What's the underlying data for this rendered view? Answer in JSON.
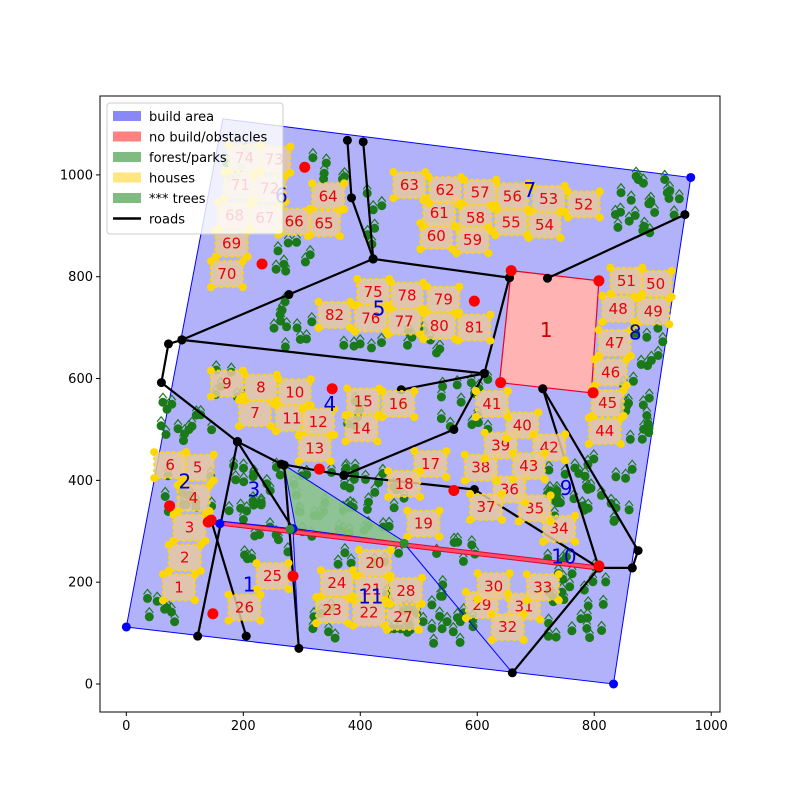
{
  "colors": {
    "build_area": "#8888f7",
    "build_edge": "#0000ff",
    "obstacle": "#ffb3b3",
    "obstacle_edge": "#e8002a",
    "forest": "#8bc48b",
    "house": "#ffd700",
    "house_frame": "#e8c8a0",
    "tree": "#1a7a1a",
    "road": "#000000",
    "blue_node": "#0000ff",
    "red_node": "#ff0000",
    "green_node": "#2e8b2e",
    "label_red": "#e8000b",
    "label_blue": "#0000cc"
  },
  "chart_data": {
    "type": "scatter",
    "title": "",
    "xlabel": "",
    "ylabel": "",
    "xlim": [
      -45,
      1015
    ],
    "ylim": [
      -55,
      1155
    ],
    "xticks": [
      "0",
      "200",
      "400",
      "600",
      "800",
      "1000"
    ],
    "xtick_values": [
      0,
      200,
      400,
      600,
      800,
      1000
    ],
    "yticks": [
      "0",
      "200",
      "400",
      "600",
      "800",
      "1000"
    ],
    "ytick_values": [
      0,
      200,
      400,
      600,
      800,
      1000
    ],
    "grid": false,
    "legend": {
      "placement": "top-left",
      "entries": [
        {
          "label": "build area",
          "kind": "patch",
          "color": "#8888f7"
        },
        {
          "label": "no build/obstacles",
          "kind": "patch",
          "color": "#ff8080"
        },
        {
          "label": "forest/parks",
          "kind": "patch",
          "color": "#80bb80"
        },
        {
          "label": "houses",
          "kind": "patch",
          "color": "#ffe680"
        },
        {
          "label": "*** trees",
          "kind": "patch",
          "color": "#80bb80"
        },
        {
          "label": "roads",
          "kind": "line",
          "color": "#000000"
        }
      ]
    },
    "build_area": [
      [
        0,
        112
      ],
      [
        165,
        1110
      ],
      [
        965,
        995
      ],
      [
        833,
        0
      ]
    ],
    "obstacle": {
      "label": "1",
      "polygon": [
        [
          658,
          812
        ],
        [
          808,
          792
        ],
        [
          795,
          572
        ],
        [
          638,
          592
        ]
      ],
      "label_pos": [
        718,
        695
      ]
    },
    "road_strip": [
      [
        145,
        322
      ],
      [
        808,
        232
      ],
      [
        808,
        224
      ],
      [
        145,
        314
      ]
    ],
    "forest_polygon": [
      [
        270,
        430
      ],
      [
        480,
        276
      ],
      [
        290,
        305
      ]
    ],
    "roads": [
      [
        [
          378,
          1068
        ],
        [
          385,
          955
        ],
        [
          422,
          835
        ],
        [
          405,
          1065
        ]
      ],
      [
        [
          422,
          835
        ],
        [
          278,
          765
        ],
        [
          95,
          676
        ]
      ],
      [
        [
          95,
          676
        ],
        [
          72,
          668
        ],
        [
          60,
          592
        ],
        [
          190,
          476
        ]
      ],
      [
        [
          422,
          835
        ],
        [
          655,
          798
        ]
      ],
      [
        [
          655,
          798
        ],
        [
          612,
          610
        ]
      ],
      [
        [
          720,
          797
        ],
        [
          955,
          922
        ]
      ],
      [
        [
          95,
          676
        ],
        [
          612,
          610
        ]
      ],
      [
        [
          612,
          610
        ],
        [
          470,
          578
        ]
      ],
      [
        [
          712,
          580
        ],
        [
          875,
          262
        ],
        [
          865,
          228
        ]
      ],
      [
        [
          712,
          580
        ],
        [
          808,
          228
        ]
      ],
      [
        [
          190,
          476
        ],
        [
          265,
          432
        ],
        [
          372,
          410
        ]
      ],
      [
        [
          190,
          476
        ],
        [
          122,
          94
        ]
      ],
      [
        [
          372,
          410
        ],
        [
          560,
          500
        ],
        [
          612,
          610
        ]
      ],
      [
        [
          372,
          410
        ],
        [
          595,
          382
        ],
        [
          808,
          228
        ]
      ],
      [
        [
          145,
          322
        ],
        [
          205,
          94
        ]
      ],
      [
        [
          190,
          476
        ],
        [
          285,
          305
        ]
      ],
      [
        [
          808,
          228
        ],
        [
          660,
          22
        ]
      ],
      [
        [
          865,
          228
        ],
        [
          808,
          228
        ]
      ],
      [
        [
          270,
          430
        ],
        [
          295,
          70
        ]
      ]
    ],
    "blue_nodes": [
      [
        0,
        112
      ],
      [
        965,
        995
      ],
      [
        833,
        0
      ],
      [
        160,
        315
      ],
      [
        475,
        276
      ],
      [
        285,
        305
      ]
    ],
    "red_nodes": [
      [
        305,
        1015
      ],
      [
        232,
        825
      ],
      [
        595,
        752
      ],
      [
        658,
        812
      ],
      [
        808,
        792
      ],
      [
        640,
        592
      ],
      [
        798,
        572
      ],
      [
        352,
        580
      ],
      [
        330,
        422
      ],
      [
        560,
        380
      ],
      [
        74,
        350
      ],
      [
        140,
        318
      ],
      [
        145,
        322
      ],
      [
        148,
        138
      ],
      [
        285,
        212
      ],
      [
        808,
        232
      ]
    ],
    "green_nodes": [
      [
        280,
        304
      ],
      [
        475,
        276
      ]
    ],
    "houses": [
      {
        "id": "1",
        "x": 90,
        "y": 190
      },
      {
        "id": "2",
        "x": 100,
        "y": 248
      },
      {
        "id": "3",
        "x": 108,
        "y": 307
      },
      {
        "id": "4",
        "x": 115,
        "y": 365
      },
      {
        "id": "5",
        "x": 122,
        "y": 425
      },
      {
        "id": "6",
        "x": 75,
        "y": 430
      },
      {
        "id": "7",
        "x": 220,
        "y": 532
      },
      {
        "id": "8",
        "x": 230,
        "y": 582
      },
      {
        "id": "9",
        "x": 172,
        "y": 590
      },
      {
        "id": "10",
        "x": 288,
        "y": 573
      },
      {
        "id": "11",
        "x": 283,
        "y": 522
      },
      {
        "id": "12",
        "x": 328,
        "y": 515
      },
      {
        "id": "13",
        "x": 322,
        "y": 463
      },
      {
        "id": "14",
        "x": 402,
        "y": 502
      },
      {
        "id": "15",
        "x": 405,
        "y": 555
      },
      {
        "id": "16",
        "x": 465,
        "y": 550
      },
      {
        "id": "17",
        "x": 520,
        "y": 432
      },
      {
        "id": "18",
        "x": 475,
        "y": 393
      },
      {
        "id": "19",
        "x": 508,
        "y": 315
      },
      {
        "id": "20",
        "x": 425,
        "y": 238
      },
      {
        "id": "21",
        "x": 420,
        "y": 186
      },
      {
        "id": "22",
        "x": 415,
        "y": 140
      },
      {
        "id": "23",
        "x": 352,
        "y": 145
      },
      {
        "id": "24",
        "x": 360,
        "y": 198
      },
      {
        "id": "25",
        "x": 250,
        "y": 212
      },
      {
        "id": "26",
        "x": 202,
        "y": 150
      },
      {
        "id": "27",
        "x": 473,
        "y": 132
      },
      {
        "id": "28",
        "x": 478,
        "y": 183
      },
      {
        "id": "29",
        "x": 608,
        "y": 155
      },
      {
        "id": "30",
        "x": 628,
        "y": 192
      },
      {
        "id": "31",
        "x": 680,
        "y": 152
      },
      {
        "id": "32",
        "x": 652,
        "y": 112
      },
      {
        "id": "33",
        "x": 712,
        "y": 190
      },
      {
        "id": "34",
        "x": 740,
        "y": 305
      },
      {
        "id": "35",
        "x": 698,
        "y": 345
      },
      {
        "id": "36",
        "x": 655,
        "y": 382
      },
      {
        "id": "37",
        "x": 615,
        "y": 348
      },
      {
        "id": "38",
        "x": 606,
        "y": 425
      },
      {
        "id": "39",
        "x": 640,
        "y": 468
      },
      {
        "id": "40",
        "x": 677,
        "y": 508
      },
      {
        "id": "41",
        "x": 625,
        "y": 550
      },
      {
        "id": "42",
        "x": 723,
        "y": 465
      },
      {
        "id": "43",
        "x": 688,
        "y": 428
      },
      {
        "id": "44",
        "x": 818,
        "y": 497
      },
      {
        "id": "45",
        "x": 823,
        "y": 552
      },
      {
        "id": "46",
        "x": 828,
        "y": 612
      },
      {
        "id": "47",
        "x": 835,
        "y": 670
      },
      {
        "id": "48",
        "x": 841,
        "y": 737
      },
      {
        "id": "49",
        "x": 901,
        "y": 732
      },
      {
        "id": "50",
        "x": 905,
        "y": 786
      },
      {
        "id": "51",
        "x": 855,
        "y": 792
      },
      {
        "id": "52",
        "x": 782,
        "y": 942
      },
      {
        "id": "53",
        "x": 722,
        "y": 953
      },
      {
        "id": "54",
        "x": 715,
        "y": 902
      },
      {
        "id": "55",
        "x": 658,
        "y": 907
      },
      {
        "id": "56",
        "x": 660,
        "y": 958
      },
      {
        "id": "57",
        "x": 605,
        "y": 965
      },
      {
        "id": "58",
        "x": 597,
        "y": 915
      },
      {
        "id": "59",
        "x": 592,
        "y": 872
      },
      {
        "id": "60",
        "x": 530,
        "y": 880
      },
      {
        "id": "61",
        "x": 535,
        "y": 925
      },
      {
        "id": "62",
        "x": 545,
        "y": 970
      },
      {
        "id": "63",
        "x": 484,
        "y": 980
      },
      {
        "id": "64",
        "x": 345,
        "y": 958
      },
      {
        "id": "65",
        "x": 338,
        "y": 905
      },
      {
        "id": "66",
        "x": 287,
        "y": 908
      },
      {
        "id": "67",
        "x": 237,
        "y": 915
      },
      {
        "id": "68",
        "x": 185,
        "y": 920
      },
      {
        "id": "69",
        "x": 180,
        "y": 865
      },
      {
        "id": "70",
        "x": 172,
        "y": 805
      },
      {
        "id": "71",
        "x": 195,
        "y": 980
      },
      {
        "id": "72",
        "x": 245,
        "y": 973
      },
      {
        "id": "73",
        "x": 253,
        "y": 1030
      },
      {
        "id": "74",
        "x": 202,
        "y": 1033
      },
      {
        "id": "75",
        "x": 422,
        "y": 770
      },
      {
        "id": "76",
        "x": 418,
        "y": 718
      },
      {
        "id": "77",
        "x": 475,
        "y": 712
      },
      {
        "id": "78",
        "x": 480,
        "y": 763
      },
      {
        "id": "79",
        "x": 542,
        "y": 755
      },
      {
        "id": "80",
        "x": 535,
        "y": 703
      },
      {
        "id": "81",
        "x": 595,
        "y": 700
      },
      {
        "id": "82",
        "x": 356,
        "y": 725
      }
    ],
    "district_labels": [
      {
        "id": "1",
        "x": 210,
        "y": 195
      },
      {
        "id": "2",
        "x": 100,
        "y": 398
      },
      {
        "id": "3",
        "x": 218,
        "y": 382
      },
      {
        "id": "4",
        "x": 348,
        "y": 550
      },
      {
        "id": "5",
        "x": 432,
        "y": 738
      },
      {
        "id": "6",
        "x": 265,
        "y": 960
      },
      {
        "id": "7",
        "x": 690,
        "y": 970
      },
      {
        "id": "8",
        "x": 870,
        "y": 690
      },
      {
        "id": "9",
        "x": 752,
        "y": 385
      },
      {
        "id": "10",
        "x": 748,
        "y": 250
      },
      {
        "id": "11",
        "x": 418,
        "y": 172
      }
    ],
    "tree_regions": [
      [
        [
          38,
          175
        ],
        [
          110,
          175
        ],
        [
          110,
          118
        ],
        [
          30,
          118
        ]
      ],
      [
        [
          75,
          410
        ],
        [
          150,
          410
        ],
        [
          130,
          335
        ],
        [
          55,
          335
        ]
      ],
      [
        [
          65,
          560
        ],
        [
          150,
          560
        ],
        [
          130,
          470
        ],
        [
          55,
          470
        ]
      ],
      [
        [
          190,
          360
        ],
        [
          265,
          430
        ],
        [
          270,
          290
        ],
        [
          175,
          290
        ]
      ],
      [
        [
          200,
          300
        ],
        [
          285,
          300
        ],
        [
          285,
          245
        ],
        [
          200,
          245
        ]
      ],
      [
        [
          285,
          425
        ],
        [
          480,
          425
        ],
        [
          470,
          290
        ],
        [
          285,
          300
        ]
      ],
      [
        [
          260,
          760
        ],
        [
          320,
          760
        ],
        [
          320,
          660
        ],
        [
          250,
          660
        ]
      ],
      [
        [
          420,
          1000
        ],
        [
          440,
          1000
        ],
        [
          440,
          860
        ],
        [
          410,
          860
        ]
      ],
      [
        [
          320,
          1050
        ],
        [
          380,
          1050
        ],
        [
          380,
          990
        ],
        [
          310,
          990
        ]
      ],
      [
        [
          160,
          1050
        ],
        [
          210,
          1050
        ],
        [
          210,
          980
        ],
        [
          160,
          980
        ]
      ],
      [
        [
          260,
          870
        ],
        [
          320,
          870
        ],
        [
          320,
          800
        ],
        [
          250,
          800
        ]
      ],
      [
        [
          830,
          1000
        ],
        [
          950,
          1000
        ],
        [
          950,
          880
        ],
        [
          830,
          880
        ]
      ],
      [
        [
          860,
          700
        ],
        [
          920,
          700
        ],
        [
          920,
          480
        ],
        [
          850,
          480
        ]
      ],
      [
        [
          720,
          450
        ],
        [
          870,
          450
        ],
        [
          860,
          310
        ],
        [
          720,
          310
        ]
      ],
      [
        [
          740,
          250
        ],
        [
          830,
          250
        ],
        [
          830,
          90
        ],
        [
          720,
          90
        ]
      ],
      [
        [
          520,
          290
        ],
        [
          600,
          290
        ],
        [
          600,
          240
        ],
        [
          520,
          240
        ]
      ],
      [
        [
          330,
          260
        ],
        [
          470,
          260
        ],
        [
          470,
          230
        ],
        [
          330,
          230
        ]
      ],
      [
        [
          300,
          150
        ],
        [
          360,
          150
        ],
        [
          360,
          90
        ],
        [
          300,
          90
        ]
      ],
      [
        [
          440,
          200
        ],
        [
          560,
          200
        ],
        [
          560,
          90
        ],
        [
          440,
          90
        ]
      ],
      [
        [
          520,
          150
        ],
        [
          600,
          150
        ],
        [
          600,
          70
        ],
        [
          520,
          70
        ]
      ],
      [
        [
          550,
          600
        ],
        [
          620,
          600
        ],
        [
          620,
          500
        ],
        [
          530,
          500
        ]
      ],
      [
        [
          470,
          700
        ],
        [
          560,
          700
        ],
        [
          560,
          650
        ],
        [
          470,
          650
        ]
      ],
      [
        [
          360,
          690
        ],
        [
          460,
          690
        ],
        [
          460,
          660
        ],
        [
          360,
          660
        ]
      ],
      [
        [
          140,
          620
        ],
        [
          200,
          620
        ],
        [
          200,
          560
        ],
        [
          140,
          560
        ]
      ],
      [
        [
          370,
          560
        ],
        [
          420,
          560
        ],
        [
          420,
          500
        ],
        [
          370,
          500
        ]
      ]
    ]
  }
}
